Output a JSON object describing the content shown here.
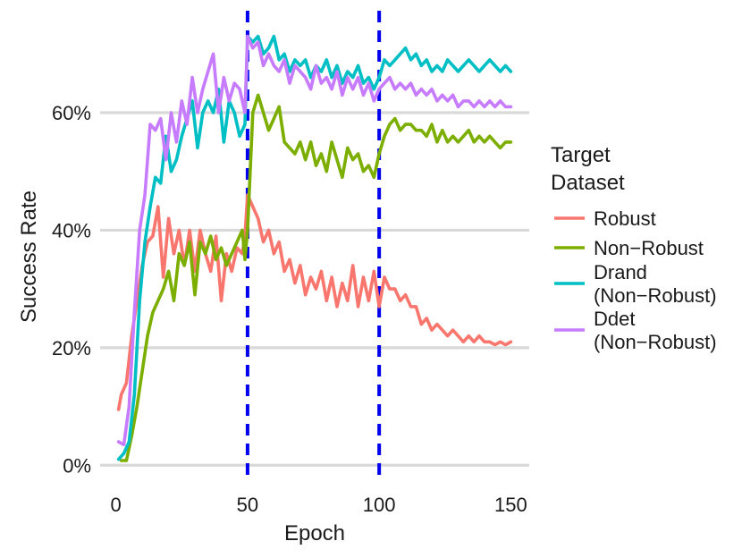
{
  "chart_data": {
    "type": "line",
    "xlabel": "Epoch",
    "ylabel": "Success Rate",
    "xlim": [
      -6,
      157
    ],
    "ylim": [
      -3,
      74
    ],
    "x_ticks": [
      0,
      50,
      100,
      150
    ],
    "x_tick_labels": [
      "0",
      "50",
      "100",
      "150"
    ],
    "y_ticks": [
      0,
      20,
      40,
      60
    ],
    "y_tick_labels": [
      "0%",
      "20%",
      "40%",
      "60%"
    ],
    "grid": "horizontal major gridlines",
    "vlines": [
      {
        "x": 50,
        "color": "#0000ee",
        "style": "dashed"
      },
      {
        "x": 100,
        "color": "#0000ee",
        "style": "dashed"
      }
    ],
    "legend": {
      "title_lines": [
        "Target",
        "Dataset"
      ],
      "position": "right"
    },
    "series": [
      {
        "name": "Robust",
        "label_lines": [
          "Robust"
        ],
        "color": "#f8766d",
        "x": [
          1,
          2,
          4,
          6,
          8,
          10,
          12,
          14,
          16,
          18,
          20,
          22,
          24,
          26,
          28,
          30,
          32,
          34,
          36,
          38,
          40,
          42,
          44,
          46,
          48,
          49,
          50,
          52,
          54,
          56,
          58,
          60,
          62,
          64,
          66,
          68,
          70,
          72,
          74,
          76,
          78,
          80,
          82,
          84,
          86,
          88,
          90,
          92,
          94,
          96,
          98,
          100,
          102,
          104,
          106,
          108,
          110,
          112,
          114,
          116,
          118,
          120,
          122,
          124,
          126,
          128,
          130,
          132,
          134,
          136,
          138,
          140,
          142,
          144,
          146,
          148,
          150
        ],
        "y": [
          9.5,
          12,
          14,
          22,
          28,
          34,
          38,
          39,
          44,
          32,
          42,
          36,
          40,
          34,
          40,
          33,
          40,
          36,
          33,
          39,
          28,
          36,
          33,
          37,
          36,
          39,
          46,
          44,
          42,
          38,
          40,
          36,
          38,
          33,
          35,
          31,
          34,
          29,
          32,
          30,
          33,
          28,
          32,
          27,
          31,
          28,
          34,
          27,
          32,
          28,
          33,
          27,
          32,
          30,
          30,
          28,
          29,
          27,
          27,
          24,
          25,
          23,
          24,
          23,
          22,
          23,
          22,
          21,
          22,
          21,
          22,
          21,
          21,
          20.5,
          21,
          20.5,
          21
        ]
      },
      {
        "name": "Non-Robust",
        "label_lines": [
          "Non−Robust"
        ],
        "color": "#7cae00",
        "x": [
          2,
          4,
          6,
          8,
          10,
          12,
          14,
          16,
          18,
          20,
          22,
          24,
          26,
          28,
          30,
          32,
          34,
          36,
          38,
          40,
          42,
          44,
          46,
          48,
          49,
          50,
          52,
          54,
          56,
          58,
          60,
          62,
          64,
          66,
          68,
          70,
          72,
          74,
          76,
          78,
          80,
          82,
          84,
          86,
          88,
          90,
          92,
          94,
          96,
          98,
          100,
          102,
          104,
          106,
          108,
          110,
          112,
          114,
          116,
          118,
          120,
          122,
          124,
          126,
          128,
          130,
          132,
          134,
          136,
          138,
          140,
          142,
          144,
          146,
          148,
          150
        ],
        "y": [
          0.8,
          0.8,
          5,
          10,
          16,
          22,
          26,
          28,
          30,
          33,
          28,
          36,
          34,
          38,
          29,
          38,
          36,
          39,
          35,
          37,
          34,
          36,
          38,
          40,
          35,
          40,
          60,
          63,
          60,
          57,
          59,
          61,
          55,
          54,
          53,
          55,
          52,
          55,
          51,
          53,
          50,
          55,
          52,
          49,
          54,
          52,
          53,
          50,
          51,
          49,
          53,
          56,
          58,
          59,
          57,
          58,
          58,
          57,
          57,
          56,
          58,
          55,
          57,
          55,
          56,
          55,
          56,
          57,
          55,
          56,
          55,
          56,
          55,
          54,
          55,
          55
        ]
      },
      {
        "name": "Drand (Non-Robust)",
        "label_lines": [
          "Drand",
          "(Non−Robust)"
        ],
        "color": "#00bfc4",
        "x": [
          1,
          3,
          5,
          7,
          9,
          11,
          13,
          15,
          17,
          19,
          21,
          23,
          25,
          27,
          29,
          31,
          33,
          35,
          37,
          39,
          41,
          43,
          45,
          47,
          49,
          50,
          52,
          54,
          56,
          58,
          60,
          62,
          64,
          66,
          68,
          70,
          72,
          74,
          76,
          78,
          80,
          82,
          84,
          86,
          88,
          90,
          92,
          94,
          96,
          98,
          100,
          102,
          104,
          106,
          108,
          110,
          112,
          114,
          116,
          118,
          120,
          122,
          124,
          126,
          128,
          130,
          132,
          134,
          136,
          138,
          140,
          142,
          144,
          146,
          148,
          150
        ],
        "y": [
          1,
          2,
          4,
          12,
          28,
          38,
          44,
          49,
          48,
          56,
          50,
          52,
          56,
          59,
          62,
          54,
          60,
          62,
          60,
          64,
          55,
          62,
          60,
          56,
          58,
          73,
          72,
          73,
          70,
          71,
          73,
          69,
          70,
          67,
          69,
          68,
          69,
          66,
          68,
          67,
          69,
          66,
          68,
          65,
          67,
          66,
          68,
          65,
          66,
          64,
          66,
          69,
          68,
          69,
          70,
          71,
          69,
          70,
          68,
          69,
          67,
          68,
          67,
          69,
          68,
          67,
          68,
          69,
          68,
          67,
          68,
          69,
          68,
          67,
          68,
          67
        ]
      },
      {
        "name": "Ddet (Non-Robust)",
        "label_lines": [
          "Ddet",
          "(Non−Robust)"
        ],
        "color": "#c77cff",
        "x": [
          1,
          3,
          5,
          7,
          9,
          11,
          13,
          15,
          17,
          19,
          21,
          23,
          25,
          27,
          29,
          31,
          33,
          35,
          37,
          39,
          41,
          43,
          45,
          47,
          49,
          50,
          52,
          54,
          56,
          58,
          60,
          62,
          64,
          66,
          68,
          70,
          72,
          74,
          76,
          78,
          80,
          82,
          84,
          86,
          88,
          90,
          92,
          94,
          96,
          98,
          100,
          102,
          104,
          106,
          108,
          110,
          112,
          114,
          116,
          118,
          120,
          122,
          124,
          126,
          128,
          130,
          132,
          134,
          136,
          138,
          140,
          142,
          144,
          146,
          148,
          150
        ],
        "y": [
          4,
          3.5,
          10,
          26,
          40,
          46,
          58,
          57,
          59,
          52,
          60,
          55,
          62,
          58,
          66,
          60,
          64,
          67,
          70,
          60,
          66,
          62,
          65,
          64,
          60,
          73,
          71,
          72,
          68,
          70,
          68,
          67,
          69,
          65,
          68,
          67,
          66,
          64,
          68,
          65,
          66,
          64,
          67,
          63,
          66,
          64,
          66,
          63,
          65,
          62,
          64,
          65,
          66,
          64,
          65,
          64,
          65,
          63,
          64,
          63,
          64,
          62,
          63,
          62,
          63,
          61,
          62,
          62,
          61,
          62,
          61,
          62,
          61,
          62,
          61,
          61
        ]
      }
    ]
  }
}
